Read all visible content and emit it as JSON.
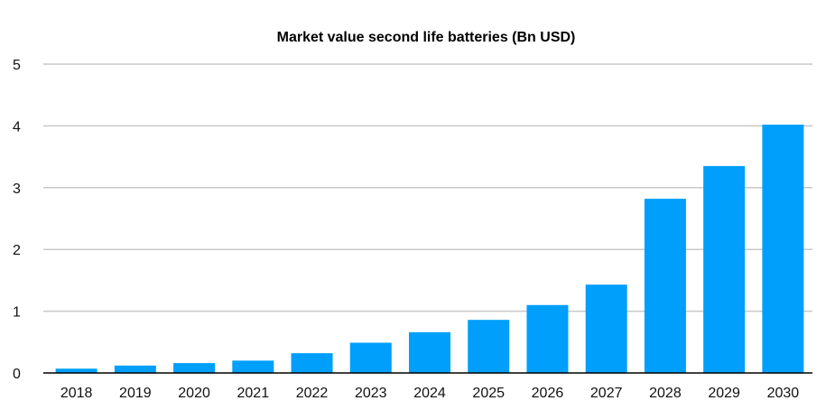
{
  "chart_data": {
    "type": "bar",
    "title": "Market value second life batteries (Bn USD)",
    "xlabel": "",
    "ylabel": "",
    "categories": [
      "2018",
      "2019",
      "2020",
      "2021",
      "2022",
      "2023",
      "2024",
      "2025",
      "2026",
      "2027",
      "2028",
      "2029",
      "2030"
    ],
    "values": [
      0.07,
      0.12,
      0.16,
      0.2,
      0.32,
      0.49,
      0.66,
      0.86,
      1.1,
      1.43,
      2.82,
      3.35,
      4.02
    ],
    "ylim": [
      0,
      5
    ],
    "yticks": [
      "0",
      "1",
      "2",
      "3",
      "4",
      "5"
    ],
    "grid": true,
    "colors": {
      "bar": "#009ffc",
      "grid": "#c8c8c8",
      "axis": "#000000"
    }
  }
}
